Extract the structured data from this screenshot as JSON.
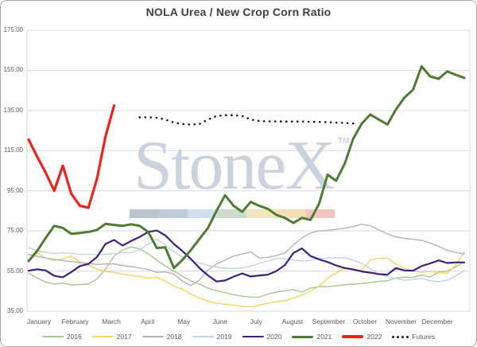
{
  "title": "NOLA Urea / New Crop Corn Ratio",
  "watermark": {
    "text": "StoneX",
    "tm": "TM",
    "color": "#c9d2dd",
    "strip_colors": [
      "#b9c4ce",
      "#c0ccd6",
      "#cfdfeb",
      "#cfdccb",
      "#f1e7bc",
      "#f4deb6",
      "#f2c5c0"
    ]
  },
  "y_axis": {
    "tick_labels": [
      "175.00",
      "155.00",
      "135.00",
      "115.00",
      "95.00",
      "75.00",
      "55.00",
      "35.00"
    ],
    "min": 35,
    "max": 175,
    "step": 20
  },
  "x_axis": {
    "months": [
      "January",
      "February",
      "March",
      "April",
      "May",
      "June",
      "July",
      "August",
      "September",
      "October",
      "November",
      "December"
    ]
  },
  "legend": [
    {
      "label": "2016",
      "color": "#a9c48f",
      "thickness": 2,
      "dotted": false
    },
    {
      "label": "2017",
      "color": "#f2d45f",
      "thickness": 2,
      "dotted": false
    },
    {
      "label": "2018",
      "color": "#b4b4b4",
      "thickness": 2,
      "dotted": false
    },
    {
      "label": "2019",
      "color": "#bcd5e8",
      "thickness": 2,
      "dotted": false
    },
    {
      "label": "2020",
      "color": "#3b2178",
      "thickness": 2.5,
      "dotted": false
    },
    {
      "label": "2021",
      "color": "#4f7a33",
      "thickness": 3,
      "dotted": false
    },
    {
      "label": "2022",
      "color": "#e8251d",
      "thickness": 3.5,
      "dotted": false
    },
    {
      "label": "Futures",
      "color": "#1a1a1a",
      "thickness": 2.5,
      "dotted": true
    }
  ],
  "chart_data": {
    "type": "line",
    "title": "NOLA Urea / New Crop Corn Ratio",
    "x_unit": "weekly points, January through December",
    "ylim": [
      35,
      175
    ],
    "grid": "horizontal",
    "legend_position": "bottom",
    "series": [
      {
        "name": "2016",
        "color": "#a9c48f",
        "width": 1.4,
        "style": "solid",
        "values": [
          54,
          51.5,
          49.5,
          48.5,
          49,
          48,
          48.3,
          48.6,
          51,
          56,
          62.5,
          65.5,
          67,
          66,
          63.5,
          60.5,
          57.5,
          55,
          52.5,
          50,
          48.5,
          46.5,
          45.2,
          44.3,
          43.2,
          42.5,
          42,
          42,
          43.5,
          44.5,
          45.2,
          45.8,
          44.5,
          46.5,
          47.2,
          47.2,
          47.6,
          48.2,
          48.5,
          48.8,
          49.3,
          49.8,
          50.2,
          51.5,
          52,
          51.8,
          53,
          52,
          54.5,
          55,
          57,
          59.5
        ]
      },
      {
        "name": "2017",
        "color": "#f2d45f",
        "width": 1.4,
        "style": "solid",
        "values": [
          63,
          64,
          61.5,
          60.3,
          61,
          62.5,
          59.5,
          58,
          56,
          54.8,
          54.3,
          53.5,
          52.8,
          52.3,
          51.5,
          51.8,
          50,
          47.5,
          46,
          43.5,
          41.5,
          40,
          39,
          38.5,
          38,
          37.5,
          37.2,
          38,
          39,
          39.8,
          40.2,
          41.5,
          43,
          45,
          47.5,
          51.5,
          54,
          56.3,
          55.5,
          55.5,
          60.5,
          61.4,
          61.4,
          58.5,
          56.5,
          55,
          54.4,
          54.8,
          54.2,
          53.8,
          58,
          64.5
        ]
      },
      {
        "name": "2018",
        "color": "#b4b4b4",
        "width": 1.4,
        "style": "solid",
        "values": [
          63.3,
          62.3,
          61.5,
          60.8,
          60.2,
          59.7,
          59.2,
          58.8,
          58.3,
          58.5,
          58.6,
          57.8,
          57.2,
          56.5,
          55.8,
          54.3,
          54.6,
          53.5,
          50,
          47.8,
          50.5,
          55.5,
          58.5,
          60.5,
          62.5,
          63.5,
          64.5,
          61.5,
          61.8,
          62.8,
          64,
          68,
          71.5,
          74,
          75,
          75.3,
          75.8,
          76.3,
          77.2,
          78.3,
          77.5,
          75.5,
          73.5,
          72,
          71.3,
          70.8,
          70.3,
          69,
          67.3,
          65.3,
          64.3,
          63.5
        ]
      },
      {
        "name": "2019",
        "color": "#bcd5e8",
        "width": 1.4,
        "style": "solid",
        "values": [
          66.5,
          65.3,
          64.3,
          63.7,
          64.1,
          63.7,
          63.3,
          63.3,
          63.1,
          63.3,
          63.7,
          64.1,
          64.3,
          65.5,
          68.5,
          70.9,
          68,
          64.5,
          62,
          60,
          59,
          57.8,
          57,
          56.4,
          56.2,
          56.6,
          57.5,
          58.8,
          60,
          61.3,
          61.1,
          60.5,
          60,
          60.3,
          61.2,
          61.4,
          61.5,
          61.7,
          60.5,
          58.7,
          56.3,
          53.3,
          52.3,
          51.3,
          50.4,
          50.8,
          51.4,
          50.2,
          49.6,
          50.4,
          52.6,
          55.2
        ]
      },
      {
        "name": "2020",
        "color": "#3b2178",
        "width": 2.2,
        "style": "solid",
        "values": [
          55.2,
          55.9,
          55.3,
          52.6,
          51.9,
          54.5,
          57.5,
          58.5,
          62,
          68.5,
          70.5,
          67.7,
          70,
          72,
          74.5,
          75.2,
          72.8,
          68.5,
          65,
          61,
          56.5,
          52.8,
          49.8,
          50.3,
          52.2,
          53.8,
          52.3,
          52.8,
          53.2,
          55,
          58,
          64,
          66.3,
          62.5,
          60.8,
          59.5,
          57.8,
          56.5,
          55.8,
          54.8,
          54.2,
          53.5,
          53.2,
          56.5,
          55.3,
          55.2,
          57.5,
          58.8,
          60.3,
          59,
          59.3,
          59.3
        ]
      },
      {
        "name": "Futures",
        "color": "#1a1a1a",
        "width": 2.6,
        "style": "dotted",
        "values": [
          null,
          null,
          null,
          null,
          null,
          null,
          null,
          null,
          null,
          null,
          null,
          null,
          null,
          131.6,
          131.6,
          131.4,
          130.5,
          129,
          128.3,
          128,
          128.3,
          130.5,
          132.3,
          132.7,
          132.7,
          132.3,
          130.5,
          129.8,
          129.6,
          129.6,
          129.5,
          129.5,
          129.5,
          129.4,
          129.3,
          129.2,
          129,
          128.8,
          128.5,
          null,
          null,
          null,
          null,
          null,
          null,
          null,
          null,
          null,
          null,
          null,
          null,
          null
        ]
      },
      {
        "name": "2021",
        "color": "#4f7a33",
        "width": 3,
        "style": "solid",
        "values": [
          60,
          65,
          71.5,
          77.5,
          76.5,
          73.5,
          74,
          74.5,
          75.5,
          78.5,
          78,
          77.5,
          78.3,
          77.5,
          74.5,
          66.5,
          66.8,
          56.5,
          60.5,
          65.5,
          71,
          76.5,
          85,
          92.8,
          87.5,
          84.5,
          89.5,
          87.5,
          86,
          83,
          81.5,
          79,
          81.5,
          80.5,
          88.5,
          103,
          100,
          108.5,
          121,
          128.5,
          133,
          130.5,
          128,
          135.5,
          141.5,
          145.3,
          157,
          152,
          150.8,
          154.5,
          152.8,
          151.3
        ]
      },
      {
        "name": "2022",
        "color": "#e8251d",
        "width": 3.2,
        "style": "solid",
        "values": [
          120.5,
          112,
          104,
          95,
          107.5,
          93.5,
          87.5,
          86.5,
          101,
          122,
          137.5,
          null,
          null,
          null,
          null,
          null,
          null,
          null,
          null,
          null,
          null,
          null,
          null,
          null,
          null,
          null,
          null,
          null,
          null,
          null,
          null,
          null,
          null,
          null,
          null,
          null,
          null,
          null,
          null,
          null,
          null,
          null,
          null,
          null,
          null,
          null,
          null,
          null,
          null,
          null,
          null,
          null
        ]
      }
    ]
  }
}
